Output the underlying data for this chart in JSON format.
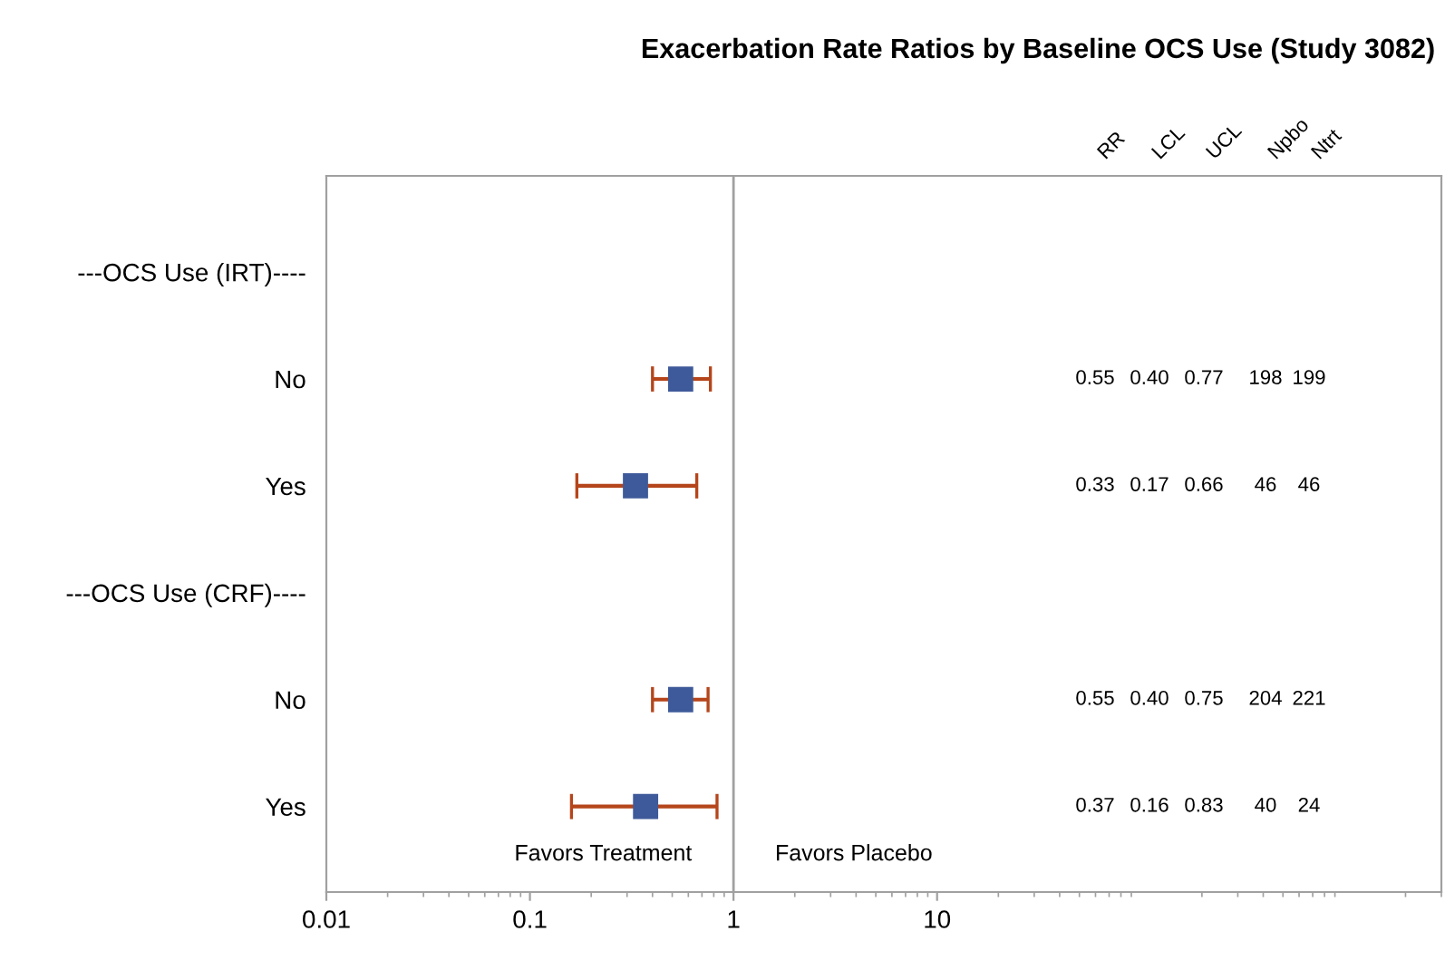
{
  "chart_data": {
    "type": "scatter",
    "orientation": "horizontal",
    "title": "Exacerbation Rate Ratios by Baseline OCS Use (Study 3082)",
    "categories": [
      "---OCS Use (IRT)----",
      "No",
      "Yes",
      "---OCS Use (CRF)----",
      "No",
      "Yes"
    ],
    "series": [
      {
        "color": "#3f5a9a",
        "values": [
          null,
          0.55,
          0.33,
          null,
          0.55,
          0.37
        ],
        "errors": [
          null,
          [
            0.4,
            0.77
          ],
          [
            0.17,
            0.66
          ],
          null,
          [
            0.4,
            0.75
          ],
          [
            0.16,
            0.83
          ]
        ]
      }
    ],
    "marker": "square",
    "log": "x",
    "xlim": [
      0.01,
      3000
    ],
    "xticks": [
      0.01,
      0.1,
      1,
      10
    ],
    "ref_lines": [
      {
        "axis": "x",
        "value": 1,
        "color": "#a0a0a0"
      }
    ],
    "annotations": [
      "Favors Treatment",
      "Favors Placebo",
      "RR",
      "LCL",
      "UCL",
      "Npbo",
      "Ntrt",
      "0.55",
      "0.40",
      "0.77",
      "198",
      "199",
      "0.33",
      "0.17",
      "0.66",
      "46",
      "46",
      "0.55",
      "0.40",
      "0.75",
      "204",
      "221",
      "0.37",
      "0.16",
      "0.83",
      "40",
      "24"
    ],
    "grid": false,
    "legend": false
  }
}
